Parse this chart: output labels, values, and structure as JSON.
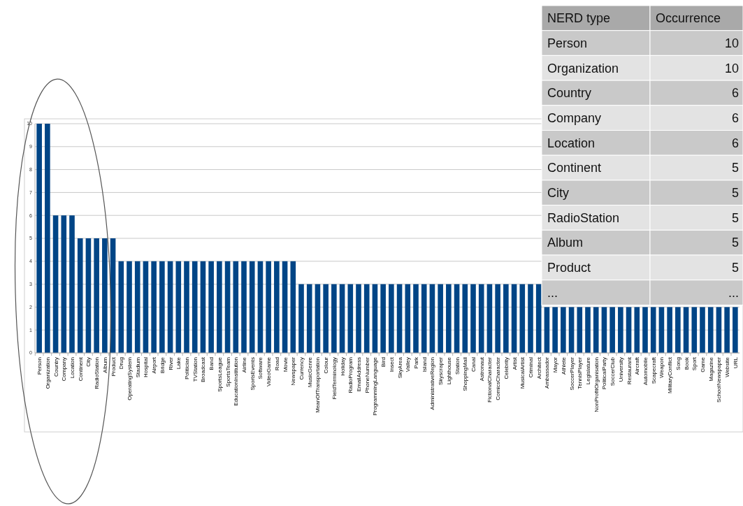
{
  "chart_data": {
    "type": "bar",
    "categories": [
      "Person",
      "Organization",
      "Country",
      "Company",
      "Location",
      "Continent",
      "City",
      "RadioStation",
      "Album",
      "Product",
      "Drug",
      "OperatingSystem",
      "Stadium",
      "Hospital",
      "Airport",
      "Bridge",
      "River",
      "Lake",
      "Politician",
      "TVStation",
      "Broadcast",
      "Band",
      "SportsLeague",
      "SportsTeam",
      "EducationInstitution",
      "Airline",
      "SportsEvents",
      "Software",
      "VideoGame",
      "Road",
      "Movie",
      "Newspaper",
      "Currency",
      "MusicGenre",
      "MeanOfTransportation",
      "Colour",
      "FieldTerminology",
      "Holiday",
      "RadioProgram",
      "EmailAddress",
      "PhoneNumber",
      "ProgrammingLanguage",
      "Bird",
      "Insect",
      "SkyArea",
      "Valley",
      "Park",
      "Island",
      "AdministrativeRegion",
      "Skyscraper",
      "Lighthouse",
      "Station",
      "ShoppingMall",
      "Canal",
      "Astronaut",
      "FictionalCharacter",
      "ComicsCharacter",
      "Celebrity",
      "Artist",
      "MusicalArtist",
      "Criminal",
      "Architect",
      "Ambassador",
      "Mayor",
      "Athlete",
      "SoccerPlayer",
      "TennisPlayer",
      "Legislature",
      "NonProfitOrganisation",
      "PoliticalParty",
      "SoccerClub",
      "University",
      "Restaurant",
      "Aircraft",
      "Automobile",
      "Scapecraft",
      "Weapon",
      "MilitaryConflict",
      "Song",
      "Book",
      "Sport",
      "Game",
      "Magazine",
      "SchoolNewspaper",
      "Website",
      "URL"
    ],
    "values": [
      10,
      10,
      6,
      6,
      6,
      5,
      5,
      5,
      5,
      5,
      4,
      4,
      4,
      4,
      4,
      4,
      4,
      4,
      4,
      4,
      4,
      4,
      4,
      4,
      4,
      4,
      4,
      4,
      4,
      4,
      4,
      4,
      3,
      3,
      3,
      3,
      3,
      3,
      3,
      3,
      3,
      3,
      3,
      3,
      3,
      3,
      3,
      3,
      3,
      3,
      3,
      3,
      3,
      3,
      3,
      3,
      3,
      3,
      3,
      3,
      3,
      3,
      2,
      2,
      2,
      2,
      2,
      2,
      2,
      2,
      2,
      2,
      2,
      2,
      2,
      2,
      2,
      2,
      2,
      2,
      2,
      2,
      2,
      2,
      2,
      2
    ],
    "color": "#004586",
    "ylim": [
      0,
      10
    ],
    "yticks": [
      0,
      1,
      2,
      3,
      4,
      5,
      6,
      7,
      8,
      9,
      10
    ],
    "grid": "y",
    "annotations": [
      "NERD type",
      "Occurrence",
      "Person",
      "10",
      "Organization",
      "10",
      "Country",
      "6",
      "Company",
      "6",
      "Location",
      "6",
      "Continent",
      "5",
      "City",
      "5",
      "RadioStation",
      "5",
      "Album",
      "5",
      "Product",
      "5",
      "...",
      "..."
    ]
  }
}
